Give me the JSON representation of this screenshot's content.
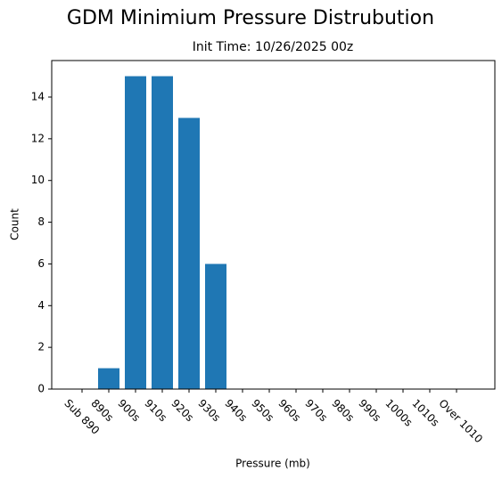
{
  "chart_data": {
    "type": "bar",
    "title": "GDM Minimium Pressure Distrubution",
    "subtitle": "Init Time: 10/26/2025 00z",
    "x_label": "Pressure (mb)",
    "y_label": "Count",
    "categories": [
      "Sub 890",
      "890s",
      "900s",
      "910s",
      "920s",
      "930s",
      "940s",
      "950s",
      "960s",
      "970s",
      "980s",
      "990s",
      "1000s",
      "1010s",
      "Over 1010"
    ],
    "values": [
      0,
      1,
      15,
      15,
      13,
      6,
      0,
      0,
      0,
      0,
      0,
      0,
      0,
      0,
      0
    ],
    "color": "#1f77b4",
    "ylim": [
      0,
      15.75
    ],
    "yticks": [
      0,
      2,
      4,
      6,
      8,
      10,
      12,
      14
    ]
  }
}
